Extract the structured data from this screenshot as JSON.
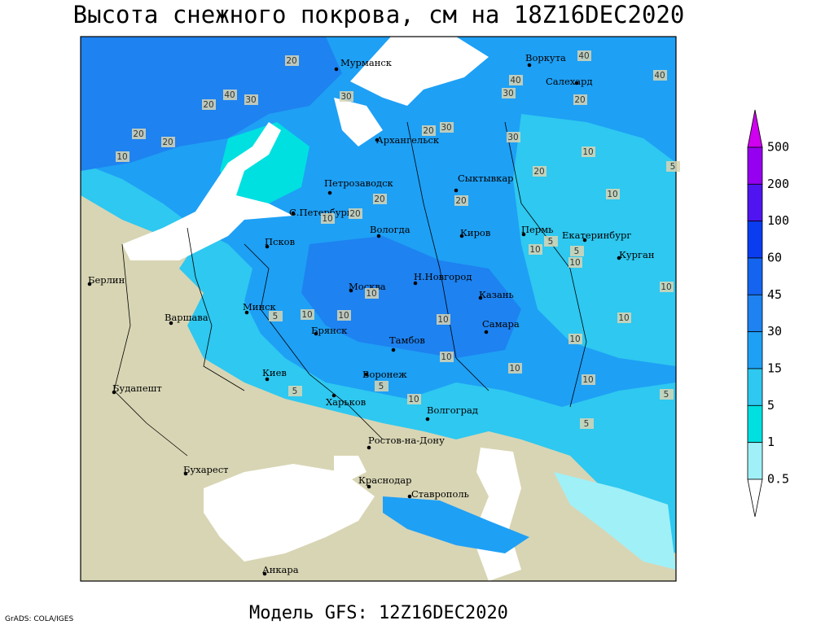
{
  "header": {
    "title": "Высота снежного покрова, см на 18Z16DEC2020"
  },
  "map": {
    "cities": [
      "Мурманск",
      "Воркута",
      "Салехард",
      "Архангельск",
      "Петрозаводск",
      "Сыктывкар",
      "С.Петербург",
      "Вологда",
      "Киров",
      "Пермь",
      "Екатеринбург",
      "Курган",
      "Псков",
      "Н.Новгород",
      "Казань",
      "Москва",
      "Минск",
      "Берлин",
      "Варшава",
      "Брянск",
      "Самара",
      "Тамбов",
      "Киев",
      "Воронеж",
      "Будапешт",
      "Харьков",
      "Волгоград",
      "Ростов-на-Дону",
      "Бухарест",
      "Краснодар",
      "Ставрополь",
      "Анкара"
    ],
    "contour_labels": [
      20,
      20,
      40,
      30,
      20,
      20,
      10,
      30,
      40,
      40,
      40,
      20,
      20,
      30,
      30,
      20,
      20,
      20,
      10,
      20,
      10,
      10,
      10,
      30,
      10,
      10,
      10,
      10,
      10,
      10,
      5,
      10,
      10,
      10,
      10,
      10,
      5,
      5,
      5,
      10,
      5,
      5,
      5,
      5
    ]
  },
  "legend": {
    "levels": [
      500,
      200,
      100,
      60,
      45,
      30,
      15,
      5,
      1,
      0.5
    ]
  },
  "footer": {
    "model": "Модель GFS: 12Z16DEC2020",
    "credit": "GrADS: COLA/IGES"
  }
}
